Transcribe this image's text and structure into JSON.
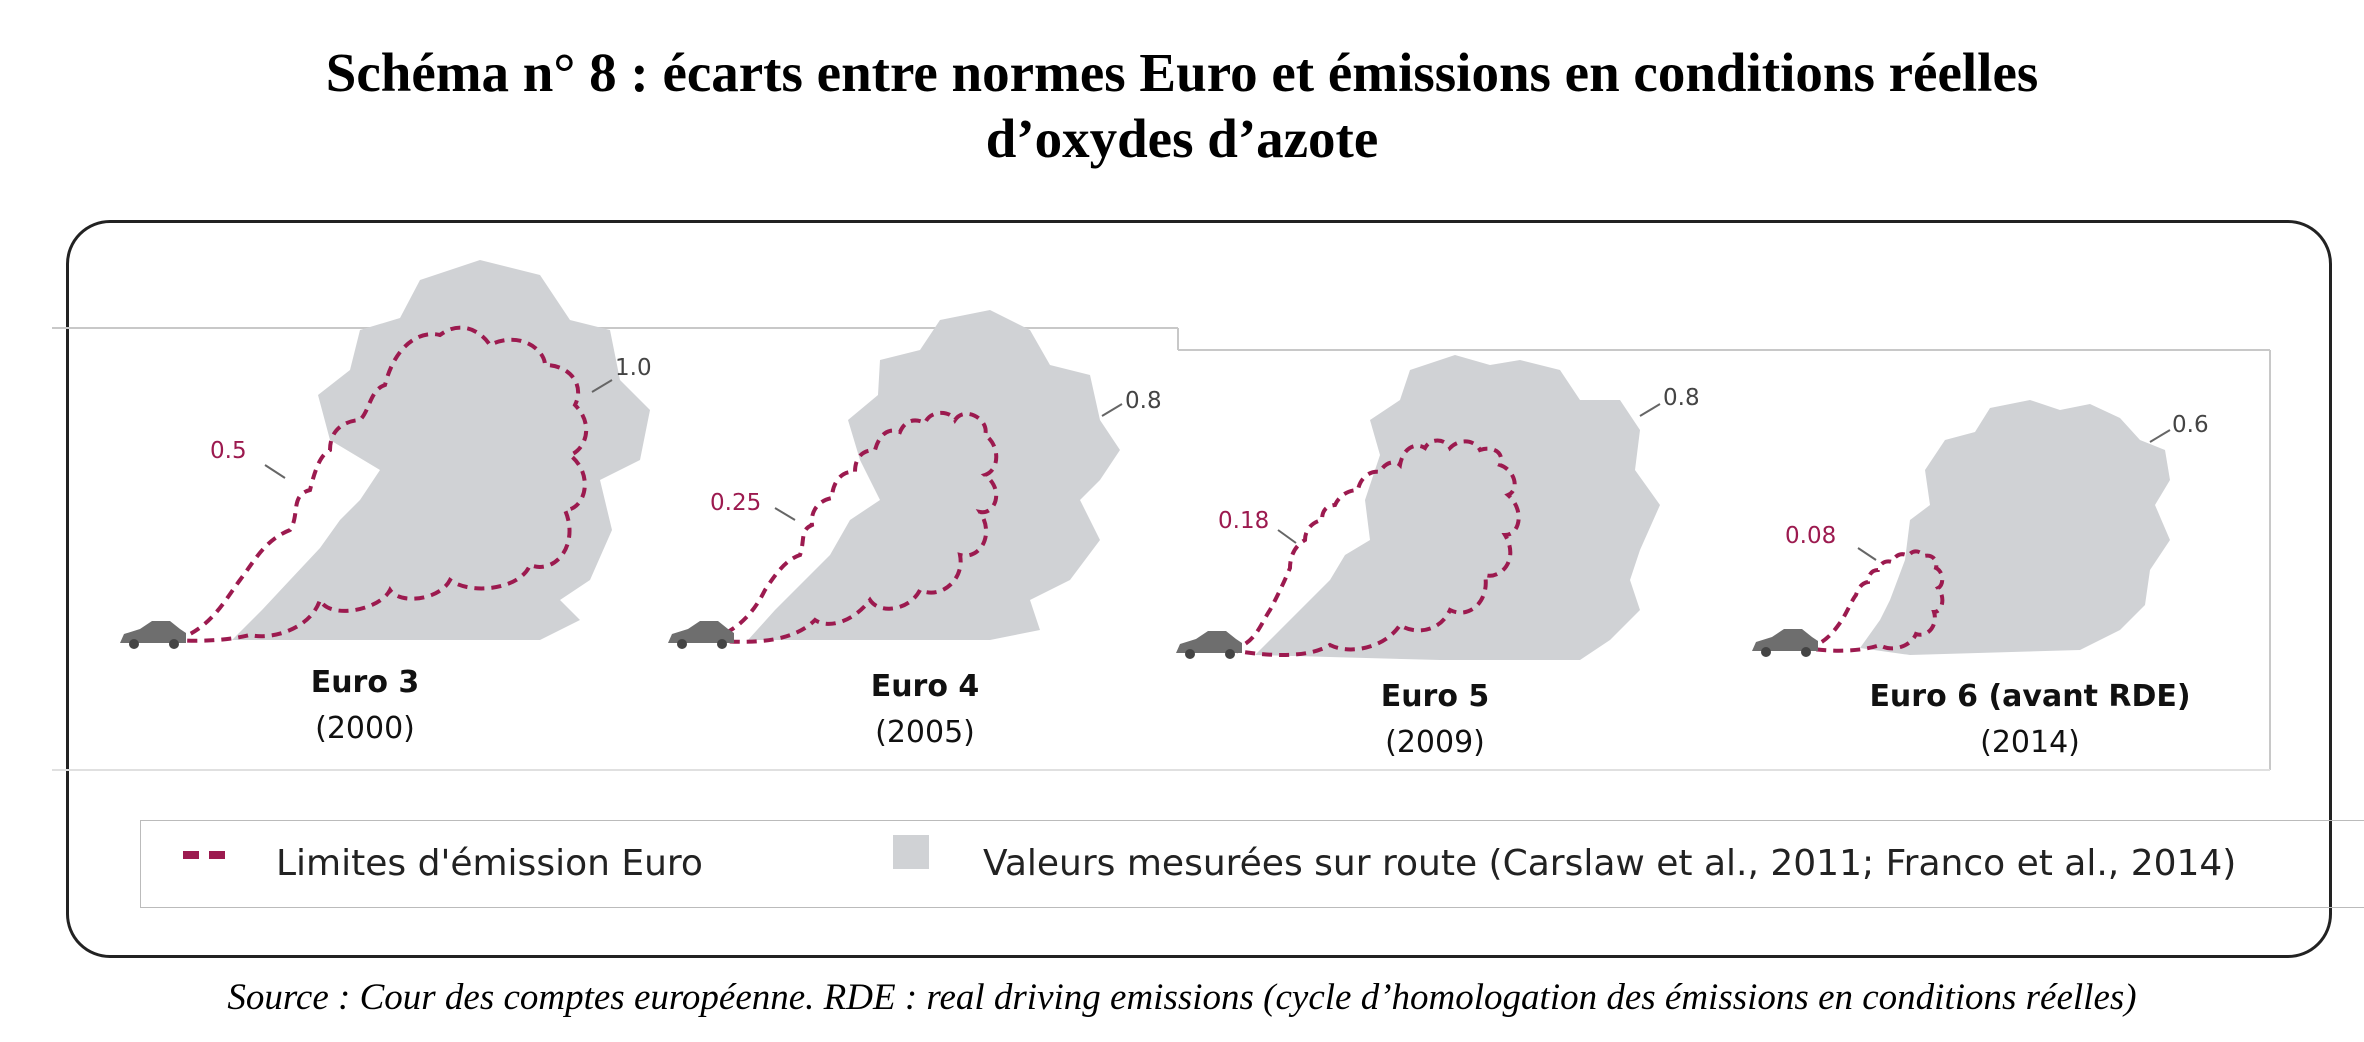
{
  "title_line1": "Schéma n° 8 : écarts entre normes Euro et émissions en conditions réelles",
  "title_line2": "d’oxydes d’azote",
  "panels": [
    {
      "name": "Euro 3",
      "year": "(2000)",
      "limit": "0.5",
      "measured": "1.0"
    },
    {
      "name": "Euro 4",
      "year": "(2005)",
      "limit": "0.25",
      "measured": "0.8"
    },
    {
      "name": "Euro 5",
      "year": "(2009)",
      "limit": "0.18",
      "measured": "0.8"
    },
    {
      "name": "Euro 6 (avant RDE)",
      "year": "(2014)",
      "limit": "0.08",
      "measured": "0.6"
    }
  ],
  "legend": {
    "limits_label": "Limites d'émission Euro",
    "measured_label": "Valeurs mesurées sur route (Carslaw et al., 2011; Franco et al., 2014)"
  },
  "colors": {
    "limit": "#9c1a4f",
    "cloud": "#d0d2d5",
    "car": "#6e6e6e"
  },
  "source": "Source : Cour des comptes européenne. RDE : real driving emissions (cycle d’homologation des émissions en conditions réelles)"
}
